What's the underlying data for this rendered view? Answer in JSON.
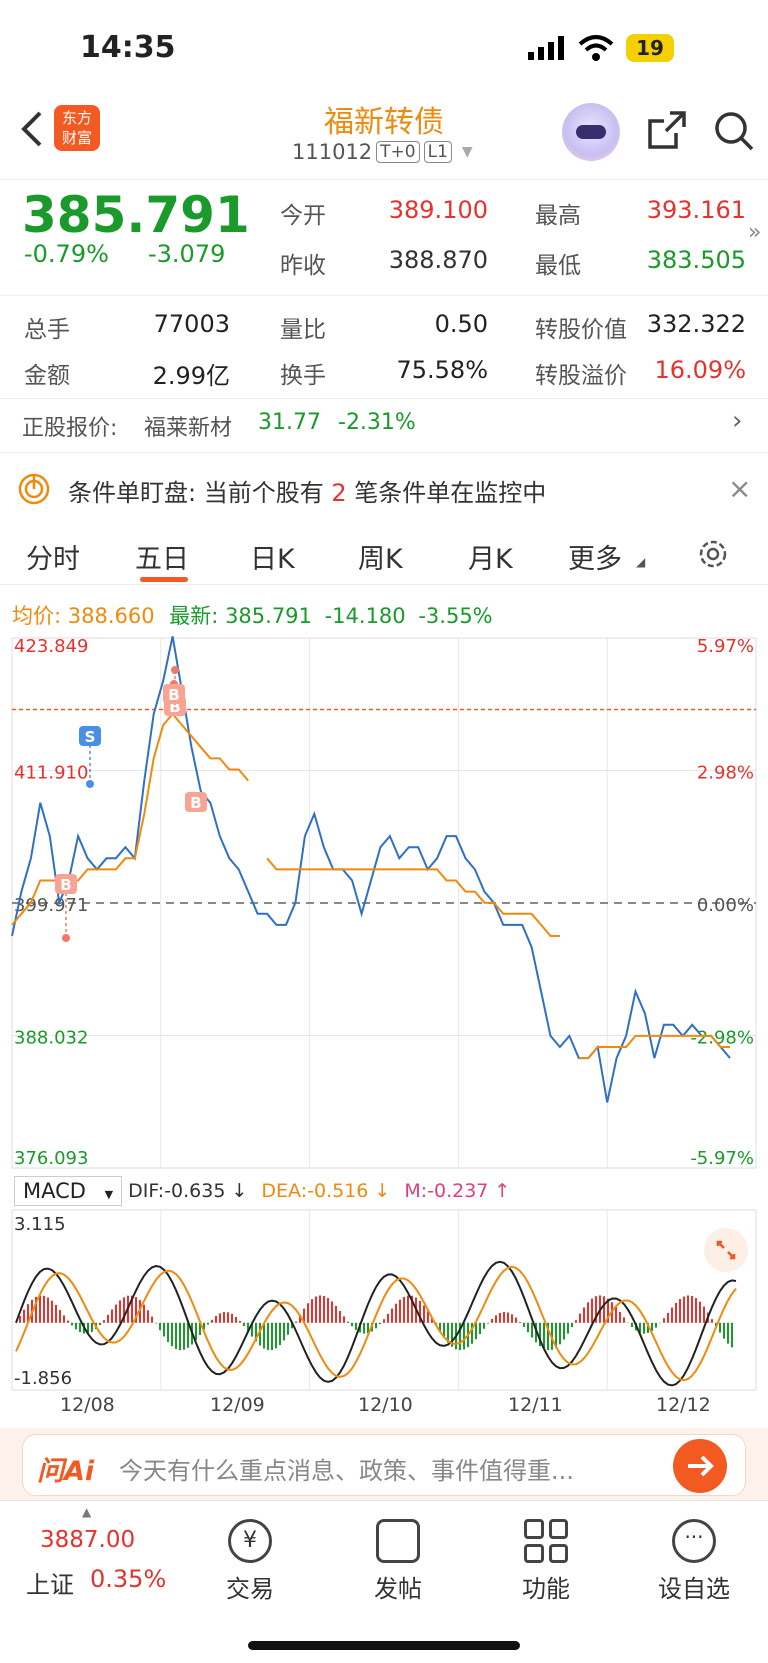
{
  "status": {
    "time": "14:35",
    "battery": "19"
  },
  "header": {
    "title": "福新转债",
    "code": "111012",
    "tag1": "T+0",
    "tag2": "L1",
    "logo_line1": "东方",
    "logo_line2": "财富"
  },
  "quote": {
    "price": "385.791",
    "pct": "-0.79%",
    "chg": "-3.079",
    "open_label": "今开",
    "open": "389.100",
    "high_label": "最高",
    "high": "393.161",
    "prev_label": "昨收",
    "prev": "388.870",
    "low_label": "最低",
    "low": "383.505"
  },
  "stats": {
    "vol_label": "总手",
    "vol": "77003",
    "ratio_label": "量比",
    "ratio": "0.50",
    "conv_label": "转股价值",
    "conv": "332.322",
    "amt_label": "金额",
    "amt": "2.99亿",
    "turn_label": "换手",
    "turn": "75.58%",
    "prem_label": "转股溢价",
    "prem": "16.09%"
  },
  "underlying": {
    "label": "正股报价:",
    "name": "福莱新材",
    "price": "31.77",
    "pct": "-2.31%"
  },
  "condition": {
    "label": "条件单盯盘:",
    "text1": "当前个股有",
    "count": "2",
    "text2": "笔条件单在监控中"
  },
  "tabs": [
    "分时",
    "五日",
    "日K",
    "周K",
    "月K",
    "更多"
  ],
  "chart_header": {
    "avg_label": "均价:",
    "avg": "388.660",
    "latest_label": "最新:",
    "latest": "385.791",
    "chg": "-14.180",
    "pct": "-3.55%"
  },
  "chart_data": {
    "type": "line",
    "y_left_ticks": [
      "423.849",
      "411.910",
      "399.971",
      "388.032",
      "376.093"
    ],
    "y_right_ticks": [
      "5.97%",
      "2.98%",
      "0.00%",
      "-2.98%",
      "-5.97%"
    ],
    "ylim": [
      376.093,
      423.849
    ],
    "x_labels": [
      "12/08",
      "12/09",
      "12/10",
      "12/11",
      "12/12"
    ],
    "series": [
      {
        "values": [
          397,
          401,
          404,
          409,
          406,
          400,
          402,
          406,
          404,
          403,
          404,
          404,
          405,
          404,
          411,
          417,
          420,
          424,
          419,
          414,
          410,
          409,
          406,
          404,
          403,
          401,
          399,
          399,
          398,
          398,
          400,
          406,
          408,
          405,
          403,
          403,
          402,
          399,
          402,
          405,
          406,
          404,
          405,
          405,
          403,
          404,
          406,
          406,
          404,
          403,
          401,
          400,
          398,
          398,
          398,
          396,
          392,
          388,
          387,
          388,
          386,
          386,
          387,
          382,
          386,
          388,
          392,
          390,
          386,
          389,
          389,
          388,
          389,
          388,
          388,
          387,
          386
        ]
      },
      {
        "values": [
          398,
          399,
          400,
          402,
          402,
          402,
          402,
          402,
          403,
          403,
          403,
          403,
          404,
          404,
          408,
          413,
          416,
          417,
          416,
          415,
          414,
          413,
          413,
          412,
          412,
          411,
          null,
          404,
          403,
          403,
          403,
          403,
          403,
          403,
          403,
          403,
          403,
          403,
          403,
          403,
          403,
          403,
          403,
          403,
          403,
          403,
          402,
          402,
          401,
          401,
          400,
          400,
          399,
          399,
          399,
          399,
          398,
          397,
          397,
          null,
          386,
          386,
          387,
          387,
          387,
          387,
          388,
          388,
          388,
          388,
          388,
          388,
          388,
          388,
          388,
          387,
          387
        ]
      }
    ],
    "markers": [
      "B",
      "S",
      "B",
      "B",
      "B"
    ],
    "macd": {
      "label": "MACD",
      "dif": "DIF:-0.635 ↓",
      "dea": "DEA:-0.516 ↓",
      "m": "M:-0.237 ↑",
      "ylim": [
        -1.856,
        3.115
      ],
      "ticks": [
        "3.115",
        "-1.856"
      ]
    }
  },
  "ai": {
    "brand": "问Ai",
    "placeholder": "今天有什么重点消息、政策、事件值得重..."
  },
  "bottom": {
    "index_value": "3887.00",
    "index_name": "上证",
    "index_pct": "0.35%",
    "trade": "交易",
    "post": "发帖",
    "func": "功能",
    "watch": "设自选"
  },
  "colors": {
    "red": "#e5322d",
    "green": "#1a9a2a",
    "orange": "#f08a0f",
    "blue": "#2f6fc8"
  }
}
